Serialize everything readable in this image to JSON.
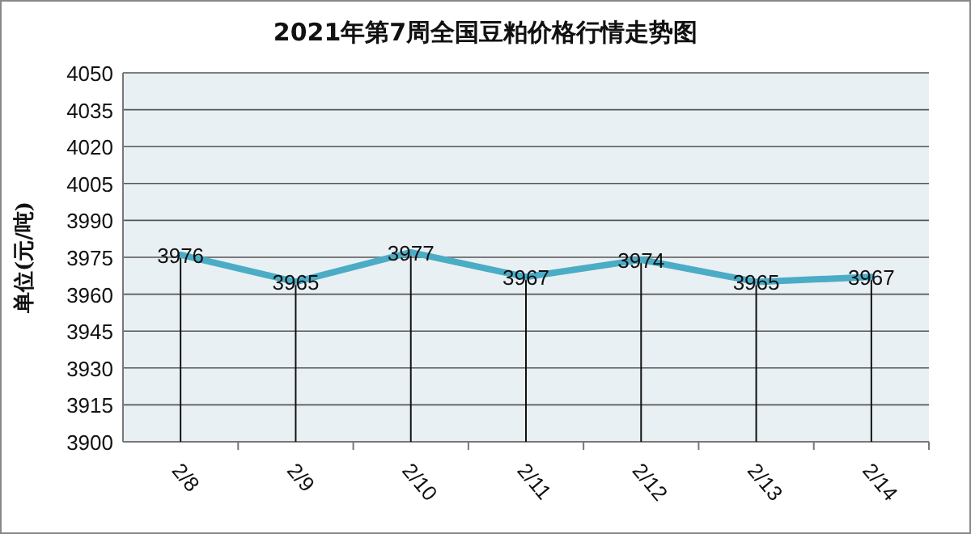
{
  "chart_data": {
    "type": "line",
    "title": "2021年第7周全国豆粕价格行情走势图",
    "ylabel": "单位(元/吨)",
    "categories": [
      "2/8",
      "2/9",
      "2/10",
      "2/11",
      "2/12",
      "2/13",
      "2/14"
    ],
    "series": [
      {
        "color": "#4bacc6",
        "values": [
          3976,
          3965,
          3977,
          3967,
          3974,
          3965,
          3967
        ]
      }
    ],
    "ylim": [
      3900,
      4050
    ],
    "yticks": [
      3900,
      3915,
      3930,
      3945,
      3960,
      3975,
      3990,
      4005,
      4020,
      4035,
      4050
    ],
    "grid": "y",
    "data_labels": true
  }
}
